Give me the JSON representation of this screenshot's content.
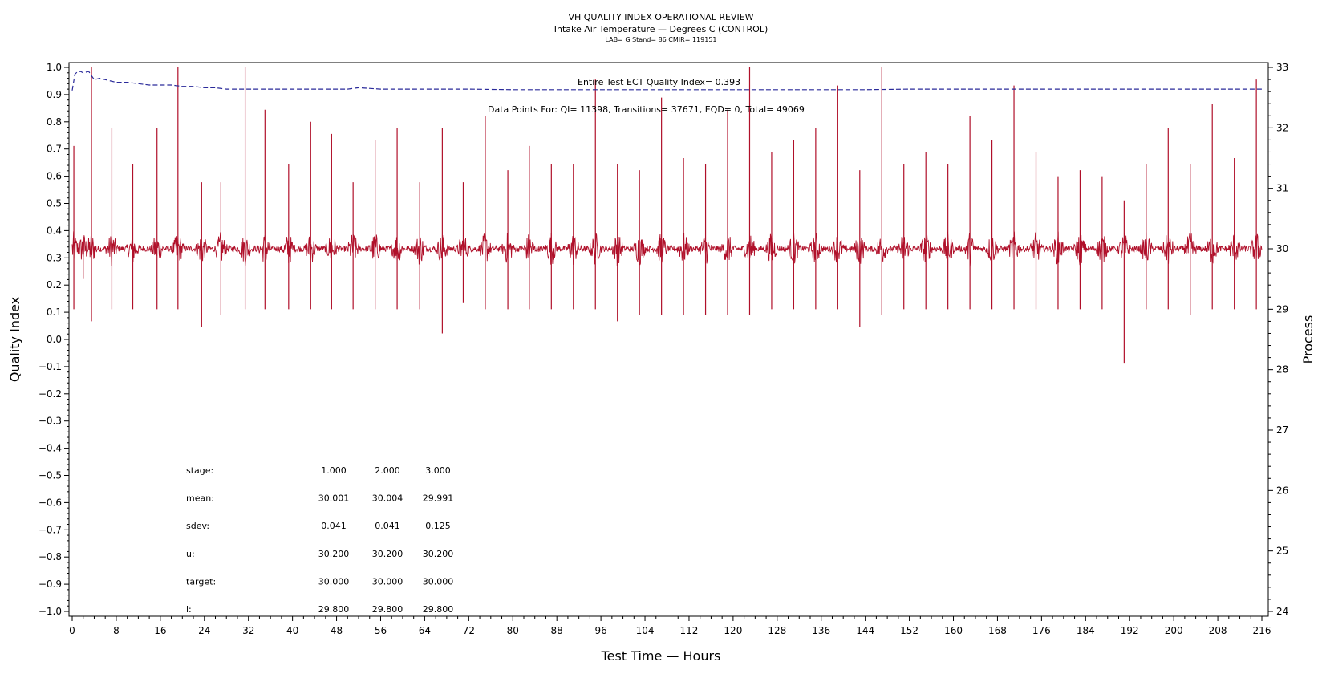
{
  "chart_data": {
    "type": "line",
    "title": "VH QUALITY INDEX OPERATIONAL REVIEW",
    "subtitle": "Intake Air Temperature — Degrees C (CONTROL)",
    "subtitle2": "LAB= G Stand= 86 CMIR= 119151",
    "xlabel": "Test Time — Hours",
    "ylabel": "Quality Index",
    "y2label": "Process",
    "xlim": [
      0,
      216
    ],
    "ylim": [
      -1.0,
      1.0
    ],
    "y2lim": [
      24,
      33
    ],
    "x_ticks": [
      "0",
      "8",
      "16",
      "24",
      "32",
      "40",
      "48",
      "56",
      "64",
      "72",
      "80",
      "88",
      "96",
      "104",
      "112",
      "120",
      "128",
      "136",
      "144",
      "152",
      "160",
      "168",
      "176",
      "184",
      "192",
      "200",
      "208",
      "216"
    ],
    "y_ticks": [
      "1.0",
      "0.9",
      "0.8",
      "0.7",
      "0.6",
      "0.5",
      "0.4",
      "0.3",
      "0.2",
      "0.1",
      "0.0",
      "−0.1",
      "−0.2",
      "−0.3",
      "−0.4",
      "−0.5",
      "−0.6",
      "−0.7",
      "−0.8",
      "−0.9",
      "−1.0"
    ],
    "y2_ticks": [
      "33",
      "32",
      "31",
      "30",
      "29",
      "28",
      "27",
      "26",
      "25",
      "24"
    ],
    "annotations": {
      "qi_text": "Entire Test ECT Quality Index=   0.393",
      "points_text": "Data Points For: QI= 11398, Transitions= 37671, EQD=      0, Total= 49069"
    },
    "series": [
      {
        "axis": "left",
        "color": "#2a2a9a",
        "dash": "6,3",
        "x": [
          0,
          0.5,
          1,
          1.5,
          2,
          3,
          3.5,
          4,
          5,
          6,
          7,
          8,
          10,
          12,
          14,
          16,
          18,
          20,
          22,
          24,
          26,
          28,
          30,
          32,
          36,
          40,
          44,
          48,
          50,
          52,
          56,
          60,
          64,
          72,
          80,
          88,
          96,
          104,
          112,
          120,
          128,
          136,
          144,
          152,
          160,
          168,
          176,
          184,
          192,
          200,
          208,
          212,
          214,
          216
        ],
        "values": [
          0.915,
          0.975,
          0.985,
          0.985,
          0.98,
          0.985,
          0.97,
          0.955,
          0.96,
          0.955,
          0.95,
          0.945,
          0.945,
          0.94,
          0.935,
          0.935,
          0.935,
          0.93,
          0.93,
          0.925,
          0.925,
          0.92,
          0.92,
          0.92,
          0.92,
          0.92,
          0.92,
          0.92,
          0.92,
          0.925,
          0.92,
          0.92,
          0.92,
          0.92,
          0.918,
          0.918,
          0.918,
          0.918,
          0.918,
          0.918,
          0.918,
          0.918,
          0.918,
          0.92,
          0.92,
          0.92,
          0.92,
          0.92,
          0.92,
          0.92,
          0.92,
          0.92,
          0.92,
          0.92
        ]
      },
      {
        "axis": "right",
        "color": "#b0102a",
        "baseline": 30.0,
        "spikes": [
          {
            "x": 0.3,
            "hi": 31.7,
            "lo": 29.0
          },
          {
            "x": 2.0,
            "hi": 30.2,
            "lo": 29.5
          },
          {
            "x": 3.5,
            "hi": 33.0,
            "lo": 28.8
          },
          {
            "x": 7.2,
            "hi": 32.0,
            "lo": 29.0
          },
          {
            "x": 11.0,
            "hi": 31.4,
            "lo": 29.0
          },
          {
            "x": 15.4,
            "hi": 32.0,
            "lo": 29.0
          },
          {
            "x": 19.2,
            "hi": 33.0,
            "lo": 29.0
          },
          {
            "x": 23.5,
            "hi": 31.1,
            "lo": 28.7
          },
          {
            "x": 27.0,
            "hi": 31.1,
            "lo": 28.9
          },
          {
            "x": 31.4,
            "hi": 33.0,
            "lo": 29.0
          },
          {
            "x": 35.0,
            "hi": 32.3,
            "lo": 29.0
          },
          {
            "x": 39.3,
            "hi": 31.4,
            "lo": 29.0
          },
          {
            "x": 43.3,
            "hi": 32.1,
            "lo": 29.0
          },
          {
            "x": 47.1,
            "hi": 31.9,
            "lo": 29.0
          },
          {
            "x": 51.0,
            "hi": 31.1,
            "lo": 29.0
          },
          {
            "x": 55.0,
            "hi": 31.8,
            "lo": 29.0
          },
          {
            "x": 59.0,
            "hi": 32.0,
            "lo": 29.0
          },
          {
            "x": 63.1,
            "hi": 31.1,
            "lo": 29.0
          },
          {
            "x": 67.2,
            "hi": 32.0,
            "lo": 28.6
          },
          {
            "x": 71.0,
            "hi": 31.1,
            "lo": 29.1
          },
          {
            "x": 75.0,
            "hi": 32.2,
            "lo": 29.0
          },
          {
            "x": 79.1,
            "hi": 31.3,
            "lo": 29.0
          },
          {
            "x": 83.0,
            "hi": 31.7,
            "lo": 29.0
          },
          {
            "x": 87.0,
            "hi": 31.4,
            "lo": 29.0
          },
          {
            "x": 91.0,
            "hi": 31.4,
            "lo": 29.0
          },
          {
            "x": 95.0,
            "hi": 32.8,
            "lo": 29.0
          },
          {
            "x": 99.0,
            "hi": 31.4,
            "lo": 28.8
          },
          {
            "x": 103.0,
            "hi": 31.3,
            "lo": 28.9
          },
          {
            "x": 107.0,
            "hi": 32.5,
            "lo": 28.9
          },
          {
            "x": 111.0,
            "hi": 31.5,
            "lo": 28.9
          },
          {
            "x": 115.0,
            "hi": 31.4,
            "lo": 28.9
          },
          {
            "x": 119.0,
            "hi": 32.3,
            "lo": 28.9
          },
          {
            "x": 123.0,
            "hi": 33.0,
            "lo": 28.9
          },
          {
            "x": 127.0,
            "hi": 31.6,
            "lo": 29.0
          },
          {
            "x": 131.0,
            "hi": 31.8,
            "lo": 29.0
          },
          {
            "x": 135.0,
            "hi": 32.0,
            "lo": 29.0
          },
          {
            "x": 139.0,
            "hi": 32.7,
            "lo": 29.0
          },
          {
            "x": 143.0,
            "hi": 31.3,
            "lo": 28.7
          },
          {
            "x": 147.0,
            "hi": 33.0,
            "lo": 28.9
          },
          {
            "x": 151.0,
            "hi": 31.4,
            "lo": 29.0
          },
          {
            "x": 155.0,
            "hi": 31.6,
            "lo": 29.0
          },
          {
            "x": 159.0,
            "hi": 31.4,
            "lo": 29.0
          },
          {
            "x": 163.0,
            "hi": 32.2,
            "lo": 29.0
          },
          {
            "x": 167.0,
            "hi": 31.8,
            "lo": 29.0
          },
          {
            "x": 171.0,
            "hi": 32.7,
            "lo": 29.0
          },
          {
            "x": 175.0,
            "hi": 31.6,
            "lo": 29.0
          },
          {
            "x": 179.0,
            "hi": 31.2,
            "lo": 29.0
          },
          {
            "x": 183.0,
            "hi": 31.3,
            "lo": 29.0
          },
          {
            "x": 187.0,
            "hi": 31.2,
            "lo": 29.0
          },
          {
            "x": 191.0,
            "hi": 30.8,
            "lo": 28.1
          },
          {
            "x": 195.0,
            "hi": 31.4,
            "lo": 29.0
          },
          {
            "x": 199.0,
            "hi": 32.0,
            "lo": 29.0
          },
          {
            "x": 203.0,
            "hi": 31.4,
            "lo": 28.9
          },
          {
            "x": 207.0,
            "hi": 32.4,
            "lo": 29.0
          },
          {
            "x": 211.0,
            "hi": 31.5,
            "lo": 29.0
          },
          {
            "x": 215.0,
            "hi": 32.8,
            "lo": 29.0
          }
        ]
      }
    ],
    "stats_table": {
      "rows": [
        {
          "label": "stage:",
          "values": [
            "1.000",
            "2.000",
            "3.000"
          ]
        },
        {
          "label": "mean:",
          "values": [
            "30.001",
            "30.004",
            "29.991"
          ]
        },
        {
          "label": "sdev:",
          "values": [
            "0.041",
            "0.041",
            "0.125"
          ]
        },
        {
          "label": "u:",
          "values": [
            "30.200",
            "30.200",
            "30.200"
          ]
        },
        {
          "label": "target:",
          "values": [
            "30.000",
            "30.000",
            "30.000"
          ]
        },
        {
          "label": "l:",
          "values": [
            "29.800",
            "29.800",
            "29.800"
          ]
        }
      ]
    }
  }
}
